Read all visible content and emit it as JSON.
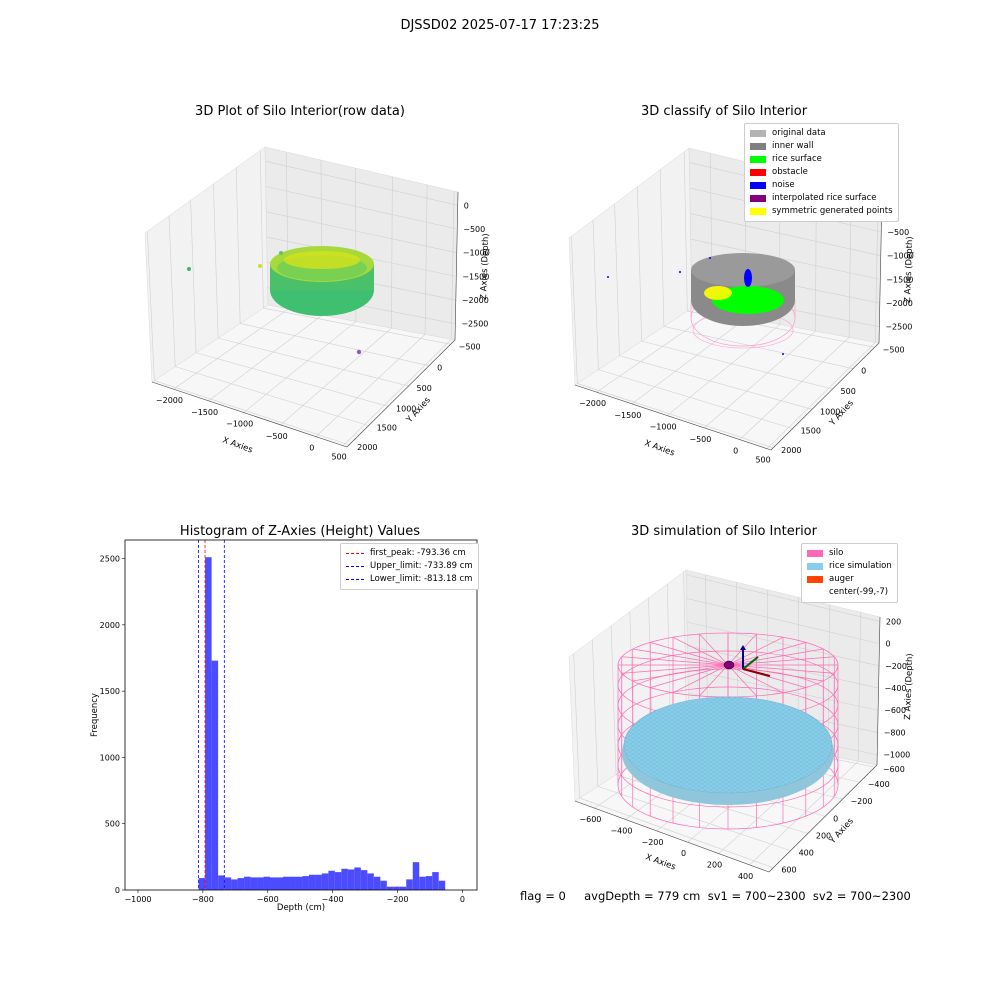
{
  "figure": {
    "suptitle": "DJSSD02 2025-07-17 17:23:25",
    "footer": "flag = 0     avgDepth = 779 cm  sv1 = 700~2300  sv2 = 700~2300"
  },
  "colors": {
    "original_data": "#b3b3b3",
    "inner_wall": "#808080",
    "rice_surface": "#00ff00",
    "obstacle": "#ff0000",
    "noise": "#0000ff",
    "interpolated": "#800080",
    "symmetric": "#ffff00",
    "silo": "#ff69b4",
    "rice_sim": "#87ceeb",
    "auger": "#ff4500",
    "hist_bar": "#4c4cff"
  },
  "panels": {
    "raw": {
      "title": "3D Plot of Silo Interior(row data)",
      "x_label": "X Axies",
      "y_label": "Y Axies",
      "z_label": "Z Axies (Depth)",
      "x_ticks": [
        "−2000",
        "−1500",
        "−1000",
        "−500",
        "0",
        "500"
      ],
      "y_ticks": [
        "−500",
        "0",
        "500",
        "1000",
        "1500",
        "2000"
      ],
      "z_ticks": [
        "0",
        "−500",
        "−1000",
        "−1500",
        "−2000",
        "−2500"
      ]
    },
    "classify": {
      "title": "3D classify of Silo Interior",
      "x_label": "X Axies",
      "y_label": "Y Axies",
      "z_label": "Z Axies (Depth)",
      "x_ticks": [
        "−2000",
        "−1500",
        "−1000",
        "−500",
        "0",
        "500"
      ],
      "y_ticks": [
        "−500",
        "0",
        "500",
        "1000",
        "1500",
        "2000"
      ],
      "z_ticks": [
        "0",
        "−500",
        "−1000",
        "−1500",
        "−2000",
        "−2500"
      ],
      "legend": [
        {
          "label": "original data",
          "color_key": "original_data"
        },
        {
          "label": "inner wall",
          "color_key": "inner_wall"
        },
        {
          "label": "rice surface",
          "color_key": "rice_surface"
        },
        {
          "label": "obstacle",
          "color_key": "obstacle"
        },
        {
          "label": "noise",
          "color_key": "noise"
        },
        {
          "label": "interpolated rice surface",
          "color_key": "interpolated"
        },
        {
          "label": "symmetric generated points",
          "color_key": "symmetric"
        }
      ]
    },
    "simulation": {
      "title": "3D simulation of Silo Interior",
      "x_label": "X Axies",
      "y_label": "Y Axies",
      "z_label": "Z Axies (Depth)",
      "x_ticks": [
        "−600",
        "−400",
        "−200",
        "0",
        "200",
        "400"
      ],
      "y_ticks": [
        "−600",
        "−400",
        "−200",
        "0",
        "200",
        "400",
        "600"
      ],
      "z_ticks": [
        "200",
        "0",
        "−200",
        "−400",
        "−600",
        "−800",
        "−1000"
      ],
      "legend": [
        {
          "label": "silo",
          "color_key": "silo"
        },
        {
          "label": "rice simulation",
          "color_key": "rice_sim"
        },
        {
          "label": "auger",
          "color_key": "auger"
        },
        {
          "label": "center(-99,-7)",
          "color_key": ""
        }
      ]
    }
  },
  "chart_data": [
    {
      "type": "bar",
      "title": "Histogram of Z-Axies (Height) Values",
      "xlabel": "Depth (cm)",
      "ylabel": "Frequency",
      "xlim": [
        -1040,
        45
      ],
      "ylim": [
        0,
        2640
      ],
      "x_ticks": [
        -1000,
        -800,
        -600,
        -400,
        -200,
        0
      ],
      "x_tick_labels": [
        "−1000",
        "−800",
        "−600",
        "−400",
        "−200",
        "0"
      ],
      "y_ticks": [
        0,
        500,
        1000,
        1500,
        2000,
        2500
      ],
      "y_tick_labels": [
        "0",
        "500",
        "1000",
        "1500",
        "2000",
        "2500"
      ],
      "grid": false,
      "legend_position": "top-right",
      "bin_width": 20,
      "bin_starts": [
        -813,
        -793,
        -773,
        -753,
        -733,
        -713,
        -693,
        -673,
        -653,
        -633,
        -613,
        -593,
        -573,
        -553,
        -533,
        -513,
        -493,
        -473,
        -453,
        -433,
        -413,
        -393,
        -373,
        -353,
        -333,
        -313,
        -293,
        -273,
        -253,
        -233,
        -213,
        -193,
        -173,
        -153,
        -133,
        -113,
        -93,
        -73,
        -53,
        -33,
        -13
      ],
      "values": [
        90,
        2510,
        1730,
        110,
        95,
        80,
        90,
        100,
        95,
        95,
        100,
        95,
        95,
        100,
        100,
        100,
        105,
        115,
        115,
        125,
        145,
        135,
        160,
        155,
        170,
        150,
        125,
        100,
        70,
        25,
        25,
        25,
        80,
        210,
        100,
        105,
        135,
        70,
        0,
        0,
        0
      ],
      "reference_lines": [
        {
          "label": "first_peak: -793.36 cm",
          "x": -793.36,
          "color": "#ff0000"
        },
        {
          "label": "Upper_limit: -733.89 cm",
          "x": -733.89,
          "color": "#0000ff"
        },
        {
          "label": "Lower_limit: -813.18 cm",
          "x": -813.18,
          "color": "#0000ff"
        }
      ]
    }
  ]
}
